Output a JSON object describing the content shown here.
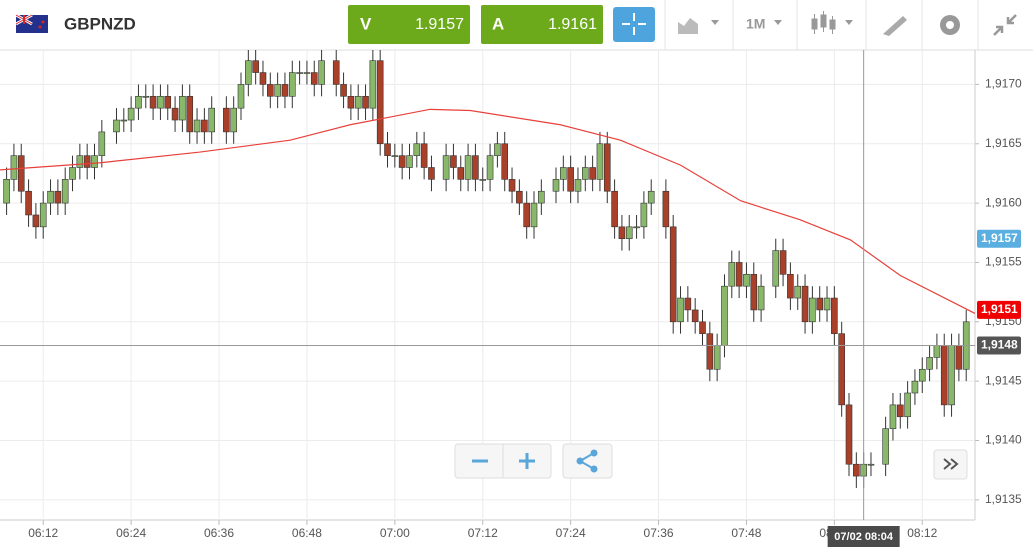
{
  "toolbar": {
    "symbol": "GBPNZD",
    "sell_label": "V",
    "sell_price": "1.9157",
    "buy_label": "A",
    "buy_price": "1.9161",
    "timeframe": "1M"
  },
  "chart_data": {
    "type": "candlestick",
    "up_color": "#8ab86a",
    "down_color": "#a8402a",
    "x": [
      367,
      368,
      369,
      370,
      371,
      372,
      373,
      374,
      375,
      376,
      377,
      378,
      379,
      380,
      382,
      383,
      384,
      385,
      386,
      387,
      388,
      389,
      390,
      391,
      392,
      393,
      394,
      395,
      397,
      398,
      399,
      400,
      401,
      402,
      403,
      404,
      405,
      406,
      407,
      408,
      409,
      410,
      412,
      413,
      414,
      415,
      416,
      417,
      418,
      419,
      420,
      421,
      422,
      423,
      424,
      425,
      427,
      428,
      429,
      430,
      431,
      432,
      433,
      434,
      435,
      436,
      437,
      438,
      439,
      440,
      442,
      443,
      444,
      445,
      446,
      447,
      448,
      449,
      450,
      451,
      452,
      453,
      454,
      455,
      457,
      458,
      459,
      460,
      461,
      462,
      463,
      464,
      465,
      466,
      467,
      468,
      469,
      470,
      472,
      473,
      474,
      475,
      476,
      477,
      478,
      479,
      480,
      481,
      482,
      483,
      484,
      485,
      487,
      488,
      489,
      490,
      491,
      492,
      493,
      494,
      495,
      496,
      497,
      498
    ],
    "open": [
      1.916,
      1.9162,
      1.9164,
      1.9161,
      1.9159,
      1.9158,
      1.916,
      1.9161,
      1.916,
      1.9162,
      1.9163,
      1.9164,
      1.9163,
      1.9164,
      1.9166,
      1.9167,
      1.9167,
      1.9168,
      1.9169,
      1.9169,
      1.9168,
      1.9169,
      1.9168,
      1.9167,
      1.9169,
      1.9166,
      1.9167,
      1.9166,
      1.9168,
      1.9166,
      1.9168,
      1.917,
      1.9172,
      1.9171,
      1.917,
      1.9169,
      1.917,
      1.9169,
      1.9171,
      1.9171,
      1.9171,
      1.917,
      1.9172,
      1.917,
      1.9169,
      1.9168,
      1.9169,
      1.9168,
      1.9172,
      1.9165,
      1.9164,
      1.9164,
      1.9163,
      1.9164,
      1.9165,
      1.9163,
      1.9162,
      1.9164,
      1.9163,
      1.9162,
      1.9164,
      1.9162,
      1.9162,
      1.9164,
      1.9165,
      1.9162,
      1.9161,
      1.916,
      1.9158,
      1.916,
      1.9161,
      1.9162,
      1.9163,
      1.9161,
      1.9162,
      1.9163,
      1.9162,
      1.9165,
      1.9161,
      1.9158,
      1.9157,
      1.9158,
      1.9158,
      1.916,
      1.9161,
      1.9158,
      1.915,
      1.9152,
      1.9151,
      1.915,
      1.9149,
      1.9146,
      1.9148,
      1.9153,
      1.9155,
      1.9153,
      1.9154,
      1.9151,
      1.9153,
      1.9156,
      1.9154,
      1.9152,
      1.9153,
      1.915,
      1.9152,
      1.9151,
      1.9152,
      1.9149,
      1.9143,
      1.9138,
      1.9137,
      1.9138,
      1.9138,
      1.9141,
      1.9143,
      1.9142,
      1.9144,
      1.9145,
      1.9146,
      1.9147,
      1.9148,
      1.9143,
      1.9148,
      1.9146
    ],
    "high": [
      1.9163,
      1.9165,
      1.9165,
      1.9162,
      1.916,
      1.9161,
      1.9162,
      1.9162,
      1.9163,
      1.9164,
      1.9165,
      1.9165,
      1.9165,
      1.9167,
      1.9168,
      1.9168,
      1.9169,
      1.917,
      1.917,
      1.917,
      1.917,
      1.917,
      1.9169,
      1.917,
      1.917,
      1.9168,
      1.9168,
      1.9169,
      1.9169,
      1.9169,
      1.9171,
      1.9173,
      1.9173,
      1.9172,
      1.9171,
      1.9171,
      1.9171,
      1.9172,
      1.9172,
      1.9172,
      1.9172,
      1.9173,
      1.9173,
      1.9171,
      1.917,
      1.917,
      1.917,
      1.9173,
      1.9173,
      1.9166,
      1.9165,
      1.9165,
      1.9165,
      1.9166,
      1.9166,
      1.9164,
      1.9165,
      1.9165,
      1.9164,
      1.9165,
      1.9165,
      1.9163,
      1.9165,
      1.9166,
      1.9166,
      1.9163,
      1.9162,
      1.9161,
      1.9161,
      1.9162,
      1.9163,
      1.9164,
      1.9164,
      1.9163,
      1.9164,
      1.9164,
      1.9166,
      1.9166,
      1.9162,
      1.9159,
      1.9159,
      1.9159,
      1.9161,
      1.9162,
      1.9162,
      1.9159,
      1.9153,
      1.9153,
      1.9152,
      1.9151,
      1.915,
      1.9149,
      1.9154,
      1.9156,
      1.9156,
      1.9155,
      1.9155,
      1.9154,
      1.9157,
      1.9157,
      1.9155,
      1.9154,
      1.9154,
      1.9153,
      1.9153,
      1.9153,
      1.9153,
      1.915,
      1.9144,
      1.9139,
      1.9139,
      1.9139,
      1.9142,
      1.9144,
      1.9144,
      1.9145,
      1.9146,
      1.9147,
      1.9148,
      1.9149,
      1.9149,
      1.9149,
      1.9149,
      1.9151
    ],
    "low": [
      1.9159,
      1.9161,
      1.916,
      1.9158,
      1.9157,
      1.9157,
      1.9159,
      1.9159,
      1.9159,
      1.9161,
      1.9162,
      1.9162,
      1.9162,
      1.9163,
      1.9165,
      1.9166,
      1.9166,
      1.9167,
      1.9168,
      1.9167,
      1.9167,
      1.9167,
      1.9166,
      1.9166,
      1.9165,
      1.9165,
      1.9165,
      1.9165,
      1.9165,
      1.9165,
      1.9167,
      1.9169,
      1.917,
      1.9169,
      1.9168,
      1.9168,
      1.9168,
      1.9168,
      1.917,
      1.917,
      1.9169,
      1.9169,
      1.9169,
      1.9168,
      1.9167,
      1.9167,
      1.9167,
      1.9167,
      1.9164,
      1.9163,
      1.9163,
      1.9162,
      1.9162,
      1.9163,
      1.9162,
      1.9161,
      1.9161,
      1.9162,
      1.9161,
      1.9161,
      1.9161,
      1.9161,
      1.9161,
      1.9163,
      1.9161,
      1.916,
      1.9159,
      1.9157,
      1.9157,
      1.9159,
      1.916,
      1.9161,
      1.916,
      1.916,
      1.9161,
      1.9161,
      1.9161,
      1.916,
      1.9157,
      1.9156,
      1.9156,
      1.9157,
      1.9157,
      1.9159,
      1.9157,
      1.9149,
      1.9149,
      1.915,
      1.9149,
      1.9148,
      1.9145,
      1.9145,
      1.9147,
      1.9152,
      1.9152,
      1.9152,
      1.915,
      1.915,
      1.9152,
      1.9153,
      1.9151,
      1.9151,
      1.9149,
      1.9149,
      1.915,
      1.915,
      1.9148,
      1.9142,
      1.9137,
      1.9136,
      1.9136,
      1.9137,
      1.9137,
      1.914,
      1.9141,
      1.9141,
      1.9143,
      1.9144,
      1.9145,
      1.9146,
      1.9142,
      1.9142,
      1.9145,
      1.9145
    ],
    "close": [
      1.9162,
      1.9164,
      1.9161,
      1.9159,
      1.9158,
      1.916,
      1.9161,
      1.916,
      1.9162,
      1.9163,
      1.9164,
      1.9163,
      1.9164,
      1.9166,
      1.9167,
      1.9167,
      1.9168,
      1.9169,
      1.9169,
      1.9168,
      1.9169,
      1.9168,
      1.9167,
      1.9169,
      1.9166,
      1.9167,
      1.9166,
      1.9168,
      1.9166,
      1.9168,
      1.917,
      1.9172,
      1.9171,
      1.917,
      1.9169,
      1.917,
      1.9169,
      1.9171,
      1.9171,
      1.9171,
      1.917,
      1.9172,
      1.917,
      1.9169,
      1.9168,
      1.9169,
      1.9168,
      1.9172,
      1.9165,
      1.9164,
      1.9164,
      1.9163,
      1.9164,
      1.9165,
      1.9163,
      1.9162,
      1.9164,
      1.9163,
      1.9162,
      1.9164,
      1.9162,
      1.9162,
      1.9164,
      1.9165,
      1.9162,
      1.9161,
      1.916,
      1.9158,
      1.916,
      1.9161,
      1.9162,
      1.9163,
      1.9161,
      1.9162,
      1.9163,
      1.9162,
      1.9165,
      1.9161,
      1.9158,
      1.9157,
      1.9158,
      1.9158,
      1.916,
      1.9161,
      1.9158,
      1.915,
      1.9152,
      1.9151,
      1.915,
      1.9149,
      1.9146,
      1.9148,
      1.9153,
      1.9155,
      1.9153,
      1.9154,
      1.9151,
      1.9153,
      1.9156,
      1.9154,
      1.9152,
      1.9153,
      1.915,
      1.9152,
      1.9151,
      1.9152,
      1.9149,
      1.9143,
      1.9138,
      1.9137,
      1.9138,
      1.9138,
      1.9141,
      1.9143,
      1.9142,
      1.9144,
      1.9145,
      1.9146,
      1.9147,
      1.9148,
      1.9143,
      1.9148,
      1.9146,
      1.915
    ],
    "overlay": {
      "type": "line",
      "color": "#e8403a",
      "x": [
        366.1,
        379.8,
        393.4,
        405.7,
        413.9,
        424.8,
        430.3,
        442.6,
        450.8,
        459.0,
        467.2,
        475.3,
        482.2,
        489.0,
        499.2
      ],
      "values": [
        1.91628,
        1.91634,
        1.91643,
        1.91653,
        1.91666,
        1.91679,
        1.91678,
        1.91666,
        1.91653,
        1.91632,
        1.91602,
        1.91586,
        1.91569,
        1.91539,
        1.91507
      ]
    },
    "xlim": [
      366.1,
      499.2
    ],
    "xticks": [
      {
        "value": 372,
        "label": "06:12"
      },
      {
        "value": 384,
        "label": "06:24"
      },
      {
        "value": 396,
        "label": "06:36"
      },
      {
        "value": 408,
        "label": "06:48"
      },
      {
        "value": 420,
        "label": "07:00"
      },
      {
        "value": 432,
        "label": "07:12"
      },
      {
        "value": 444,
        "label": "07:24"
      },
      {
        "value": 456,
        "label": "07:36"
      },
      {
        "value": 468,
        "label": "07:48"
      },
      {
        "value": 480,
        "label": "08:00"
      },
      {
        "value": 492,
        "label": "08:12"
      }
    ],
    "ylim": [
      1.91333,
      1.91729
    ],
    "yticks": [
      {
        "value": 1.9135,
        "label": "1,9135"
      },
      {
        "value": 1.914,
        "label": "1,9140"
      },
      {
        "value": 1.9145,
        "label": "1,9145"
      },
      {
        "value": 1.915,
        "label": "1,9150"
      },
      {
        "value": 1.9155,
        "label": "1,9155"
      },
      {
        "value": 1.916,
        "label": "1,9160"
      },
      {
        "value": 1.9165,
        "label": "1,9165"
      },
      {
        "value": 1.917,
        "label": "1,9170"
      }
    ],
    "grid": true,
    "price_tags": [
      {
        "value": 1.9157,
        "label": "1,9157",
        "color": "#5aaee0"
      },
      {
        "value": 1.9151,
        "label": "1,9151",
        "color": "#f00000"
      }
    ],
    "crosshair": {
      "x": {
        "value": 484,
        "label": "07/02 08:04"
      },
      "y": {
        "value": 1.9148,
        "label": "1,9148"
      }
    }
  }
}
